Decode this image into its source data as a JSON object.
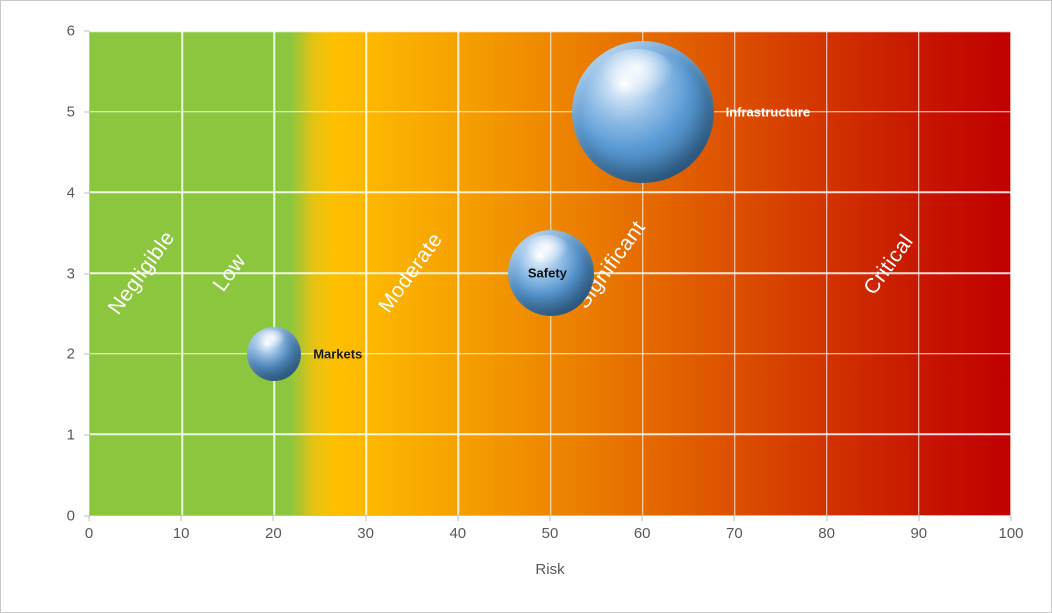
{
  "chart_data": {
    "type": "scatter",
    "subtype": "bubble",
    "title": "",
    "xlabel": "Risk",
    "ylabel": "",
    "xlim": [
      0,
      100
    ],
    "ylim": [
      0,
      6
    ],
    "x_ticks": [
      0,
      10,
      20,
      30,
      40,
      50,
      60,
      70,
      80,
      90,
      100
    ],
    "y_ticks": [
      0,
      1,
      2,
      3,
      4,
      5,
      6
    ],
    "grid": true,
    "legend": "none",
    "zones": [
      {
        "label": "Negligible",
        "x": 5.6,
        "y": 3.0
      },
      {
        "label": "Low",
        "x": 15.2,
        "y": 3.0
      },
      {
        "label": "Moderate",
        "x": 34.9,
        "y": 3.0
      },
      {
        "label": "Significant",
        "x": 56.6,
        "y": 3.1
      },
      {
        "label": "Critical",
        "x": 86.8,
        "y": 3.1
      }
    ],
    "series": [
      {
        "name": "Markets",
        "x": 20,
        "y": 2,
        "radius_px": 27,
        "label_position": "right",
        "label_color": "#1a1a1a"
      },
      {
        "name": "Safety",
        "x": 50,
        "y": 3,
        "radius_px": 43,
        "label_position": "center",
        "label_color": "#111111"
      },
      {
        "name": "Infrastructure",
        "x": 60,
        "y": 5,
        "radius_px": 71,
        "label_position": "right",
        "label_color": "#ffffff"
      }
    ],
    "colors": {
      "zone_green": "#8CC63E",
      "zone_yellow": "#FFC000",
      "zone_orange": "#E87400",
      "zone_red": "#C00000",
      "bubble_fill": "#5B9BD5",
      "gridline": "#FFFFFF",
      "axis_text": "#595959",
      "zone_label_text": "#FFFFFF"
    }
  }
}
